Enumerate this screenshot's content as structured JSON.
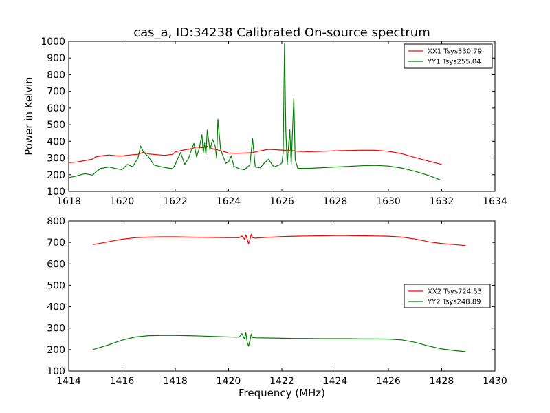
{
  "figure": {
    "title": "cas_a, ID:34238 Calibrated On-source spectrum",
    "ylabel": "Power in Kelvin",
    "xlabel": "Frequency (MHz)"
  },
  "chart_data": [
    {
      "type": "line",
      "title": "cas_a, ID:34238 Calibrated On-source spectrum",
      "ylabel": "Power in Kelvin",
      "xlabel": "",
      "xlim": [
        1618,
        1634
      ],
      "ylim": [
        100,
        1000
      ],
      "xticks": [
        1618,
        1620,
        1622,
        1624,
        1626,
        1628,
        1630,
        1632,
        1634
      ],
      "yticks": [
        100,
        200,
        300,
        400,
        500,
        600,
        700,
        800,
        900,
        1000
      ],
      "grid": false,
      "legend_position": "top-right",
      "series": [
        {
          "name": "XX1 Tsys330.79",
          "color": "#ff0000",
          "points": [
            [
              1618.0,
              272
            ],
            [
              1618.3,
              276
            ],
            [
              1618.6,
              284
            ],
            [
              1618.9,
              294
            ],
            [
              1619.0,
              306
            ],
            [
              1619.2,
              312
            ],
            [
              1619.5,
              318
            ],
            [
              1619.8,
              313
            ],
            [
              1620.0,
              312
            ],
            [
              1620.3,
              318
            ],
            [
              1620.6,
              322
            ],
            [
              1620.8,
              334
            ],
            [
              1621.0,
              324
            ],
            [
              1621.3,
              320
            ],
            [
              1621.6,
              316
            ],
            [
              1621.9,
              322
            ],
            [
              1622.0,
              336
            ],
            [
              1622.2,
              344
            ],
            [
              1622.4,
              350
            ],
            [
              1622.6,
              356
            ],
            [
              1622.8,
              366
            ],
            [
              1623.0,
              362
            ],
            [
              1623.2,
              370
            ],
            [
              1623.4,
              356
            ],
            [
              1623.6,
              348
            ],
            [
              1623.8,
              340
            ],
            [
              1624.0,
              330
            ],
            [
              1624.3,
              328
            ],
            [
              1624.6,
              330
            ],
            [
              1624.9,
              332
            ],
            [
              1625.1,
              340
            ],
            [
              1625.3,
              346
            ],
            [
              1625.5,
              352
            ],
            [
              1625.7,
              350
            ],
            [
              1625.9,
              348
            ],
            [
              1626.1,
              346
            ],
            [
              1626.4,
              344
            ],
            [
              1626.6,
              340
            ],
            [
              1627.0,
              338
            ],
            [
              1627.5,
              340
            ],
            [
              1628.0,
              343
            ],
            [
              1628.5,
              345
            ],
            [
              1629.0,
              347
            ],
            [
              1629.5,
              346
            ],
            [
              1630.0,
              340
            ],
            [
              1630.5,
              326
            ],
            [
              1631.0,
              303
            ],
            [
              1631.5,
              282
            ],
            [
              1632.0,
              262
            ]
          ]
        },
        {
          "name": "YY1 Tsys255.04",
          "color": "#008000",
          "points": [
            [
              1618.0,
              182
            ],
            [
              1618.3,
              193
            ],
            [
              1618.6,
              206
            ],
            [
              1618.9,
              198
            ],
            [
              1619.0,
              214
            ],
            [
              1619.2,
              238
            ],
            [
              1619.5,
              246
            ],
            [
              1619.8,
              236
            ],
            [
              1620.0,
              230
            ],
            [
              1620.2,
              262
            ],
            [
              1620.4,
              248
            ],
            [
              1620.6,
              300
            ],
            [
              1620.7,
              372
            ],
            [
              1620.8,
              336
            ],
            [
              1621.0,
              306
            ],
            [
              1621.2,
              258
            ],
            [
              1621.5,
              246
            ],
            [
              1621.9,
              236
            ],
            [
              1622.0,
              262
            ],
            [
              1622.1,
              300
            ],
            [
              1622.2,
              332
            ],
            [
              1622.35,
              262
            ],
            [
              1622.5,
              298
            ],
            [
              1622.6,
              346
            ],
            [
              1622.7,
              388
            ],
            [
              1622.8,
              306
            ],
            [
              1622.9,
              358
            ],
            [
              1623.0,
              440
            ],
            [
              1623.05,
              330
            ],
            [
              1623.1,
              390
            ],
            [
              1623.15,
              320
            ],
            [
              1623.2,
              468
            ],
            [
              1623.3,
              348
            ],
            [
              1623.4,
              412
            ],
            [
              1623.5,
              370
            ],
            [
              1623.55,
              300
            ],
            [
              1623.6,
              532
            ],
            [
              1623.7,
              352
            ],
            [
              1623.8,
              308
            ],
            [
              1623.9,
              268
            ],
            [
              1624.0,
              278
            ],
            [
              1624.1,
              312
            ],
            [
              1624.2,
              250
            ],
            [
              1624.4,
              236
            ],
            [
              1624.6,
              230
            ],
            [
              1624.8,
              258
            ],
            [
              1624.9,
              416
            ],
            [
              1625.0,
              246
            ],
            [
              1625.2,
              242
            ],
            [
              1625.3,
              264
            ],
            [
              1625.5,
              292
            ],
            [
              1625.7,
              246
            ],
            [
              1625.9,
              258
            ],
            [
              1626.0,
              270
            ],
            [
              1626.05,
              330
            ],
            [
              1626.1,
              985
            ],
            [
              1626.15,
              460
            ],
            [
              1626.2,
              262
            ],
            [
              1626.3,
              470
            ],
            [
              1626.35,
              262
            ],
            [
              1626.45,
              660
            ],
            [
              1626.5,
              290
            ],
            [
              1626.6,
              238
            ],
            [
              1627.0,
              238
            ],
            [
              1627.5,
              242
            ],
            [
              1628.0,
              246
            ],
            [
              1628.5,
              250
            ],
            [
              1629.0,
              254
            ],
            [
              1629.5,
              256
            ],
            [
              1630.0,
              252
            ],
            [
              1630.5,
              240
            ],
            [
              1631.0,
              220
            ],
            [
              1631.5,
              196
            ],
            [
              1632.0,
              166
            ]
          ]
        }
      ]
    },
    {
      "type": "line",
      "title": "",
      "ylabel": "",
      "xlabel": "Frequency (MHz)",
      "xlim": [
        1414,
        1430
      ],
      "ylim": [
        100,
        800
      ],
      "xticks": [
        1414,
        1416,
        1418,
        1420,
        1422,
        1424,
        1426,
        1428,
        1430
      ],
      "yticks": [
        100,
        200,
        300,
        400,
        500,
        600,
        700,
        800
      ],
      "grid": false,
      "legend_position": "center-right",
      "series": [
        {
          "name": "XX2 Tsys724.53",
          "color": "#ff0000",
          "points": [
            [
              1414.9,
              690
            ],
            [
              1415.5,
              703
            ],
            [
              1416.0,
              715
            ],
            [
              1416.5,
              722
            ],
            [
              1417.0,
              725
            ],
            [
              1417.5,
              726
            ],
            [
              1418.0,
              726
            ],
            [
              1418.5,
              725
            ],
            [
              1419.0,
              724
            ],
            [
              1419.5,
              723
            ],
            [
              1420.0,
              722
            ],
            [
              1420.4,
              722
            ],
            [
              1420.5,
              730
            ],
            [
              1420.6,
              715
            ],
            [
              1420.65,
              735
            ],
            [
              1420.7,
              716
            ],
            [
              1420.75,
              693
            ],
            [
              1420.8,
              712
            ],
            [
              1420.85,
              738
            ],
            [
              1420.9,
              722
            ],
            [
              1421.0,
              720
            ],
            [
              1421.5,
              724
            ],
            [
              1422.0,
              727
            ],
            [
              1422.5,
              729
            ],
            [
              1423.0,
              730
            ],
            [
              1423.5,
              731
            ],
            [
              1424.0,
              732
            ],
            [
              1424.5,
              732
            ],
            [
              1425.0,
              731
            ],
            [
              1425.5,
              730
            ],
            [
              1426.0,
              729
            ],
            [
              1426.5,
              725
            ],
            [
              1427.0,
              716
            ],
            [
              1427.5,
              703
            ],
            [
              1428.0,
              695
            ],
            [
              1428.5,
              690
            ],
            [
              1428.9,
              685
            ]
          ]
        },
        {
          "name": "YY2 Tsys248.89",
          "color": "#008000",
          "points": [
            [
              1414.9,
              200
            ],
            [
              1415.5,
              222
            ],
            [
              1416.0,
              244
            ],
            [
              1416.5,
              259
            ],
            [
              1417.0,
              265
            ],
            [
              1417.5,
              266
            ],
            [
              1418.0,
              266
            ],
            [
              1418.5,
              265
            ],
            [
              1419.0,
              263
            ],
            [
              1419.5,
              261
            ],
            [
              1420.0,
              259
            ],
            [
              1420.4,
              258
            ],
            [
              1420.5,
              274
            ],
            [
              1420.6,
              250
            ],
            [
              1420.65,
              278
            ],
            [
              1420.7,
              234
            ],
            [
              1420.75,
              216
            ],
            [
              1420.8,
              242
            ],
            [
              1420.85,
              272
            ],
            [
              1420.9,
              256
            ],
            [
              1421.0,
              255
            ],
            [
              1421.5,
              254
            ],
            [
              1422.0,
              253
            ],
            [
              1422.5,
              252
            ],
            [
              1423.0,
              252
            ],
            [
              1423.5,
              251
            ],
            [
              1424.0,
              251
            ],
            [
              1424.5,
              251
            ],
            [
              1425.0,
              250
            ],
            [
              1425.5,
              250
            ],
            [
              1426.0,
              249
            ],
            [
              1426.5,
              245
            ],
            [
              1427.0,
              234
            ],
            [
              1427.5,
              217
            ],
            [
              1428.0,
              203
            ],
            [
              1428.5,
              195
            ],
            [
              1428.9,
              190
            ]
          ]
        }
      ]
    }
  ]
}
